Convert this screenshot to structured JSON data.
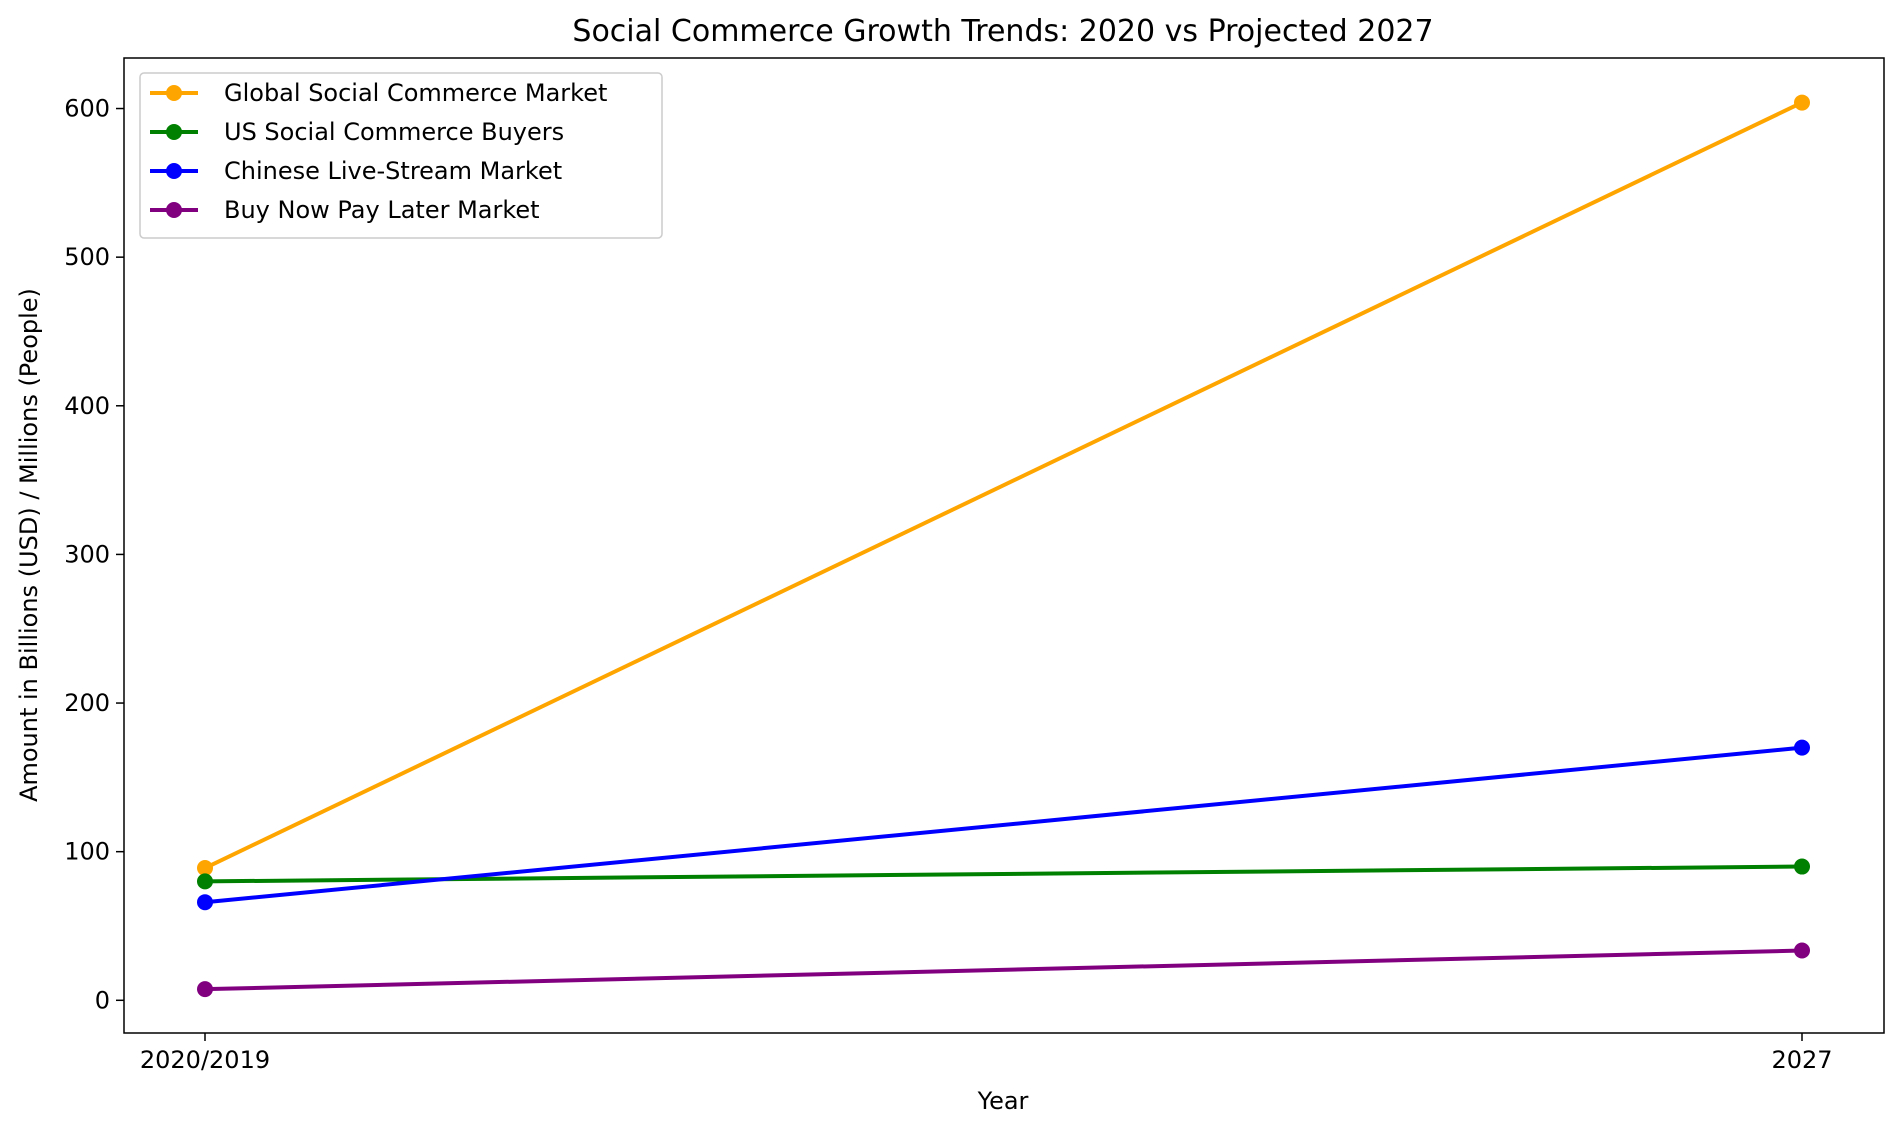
{
  "chart_data": {
    "type": "line",
    "title": "Social Commerce Growth Trends: 2020 vs Projected 2027",
    "xlabel": "Year",
    "ylabel": "Amount in Billions (USD) / Millions (People)",
    "categories": [
      "2020/2019",
      "2027"
    ],
    "yticks": [
      0,
      100,
      200,
      300,
      400,
      500,
      600
    ],
    "ylim": [
      -22,
      634
    ],
    "grid": false,
    "legend_position": "top-left",
    "series": [
      {
        "name": "Global Social Commerce Market",
        "color": "#FFA500",
        "values": [
          89,
          604
        ]
      },
      {
        "name": "US Social Commerce Buyers",
        "color": "#008000",
        "values": [
          80,
          90
        ]
      },
      {
        "name": "Chinese Live-Stream Market",
        "color": "#0000FF",
        "values": [
          66,
          170
        ]
      },
      {
        "name": "Buy Now Pay Later Market",
        "color": "#800080",
        "values": [
          7.5,
          33.5
        ]
      }
    ]
  }
}
